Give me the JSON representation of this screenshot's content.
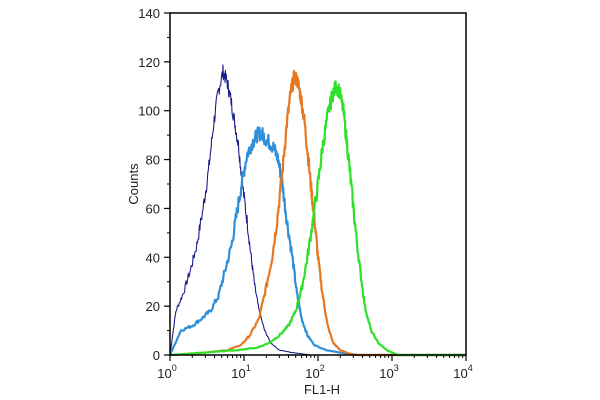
{
  "chart_data": {
    "type": "line",
    "xlabel": "FL1-H",
    "ylabel": "Counts",
    "x_scale": "log",
    "xlim": [
      1,
      10000
    ],
    "ylim": [
      0,
      140
    ],
    "x_ticks": [
      {
        "value": 1,
        "base": "10",
        "exp": "0"
      },
      {
        "value": 10,
        "base": "10",
        "exp": "1"
      },
      {
        "value": 100,
        "base": "10",
        "exp": "2"
      },
      {
        "value": 1000,
        "base": "10",
        "exp": "3"
      },
      {
        "value": 10000,
        "base": "10",
        "exp": "4"
      }
    ],
    "y_ticks": [
      "0",
      "20",
      "40",
      "60",
      "80",
      "100",
      "120",
      "140"
    ],
    "grid": false,
    "series": [
      {
        "color": "#1a1f8c",
        "points": [
          [
            1.0,
            0
          ],
          [
            1.2,
            18
          ],
          [
            1.5,
            25
          ],
          [
            1.9,
            35
          ],
          [
            2.3,
            45
          ],
          [
            2.8,
            60
          ],
          [
            3.3,
            75
          ],
          [
            3.9,
            95
          ],
          [
            4.5,
            108
          ],
          [
            5.2,
            116
          ],
          [
            5.9,
            112
          ],
          [
            6.6,
            105
          ],
          [
            7.5,
            95
          ],
          [
            8.5,
            85
          ],
          [
            9.5,
            70
          ],
          [
            11,
            55
          ],
          [
            12.5,
            40
          ],
          [
            14,
            28
          ],
          [
            16,
            18
          ],
          [
            19,
            10
          ],
          [
            23,
            5
          ],
          [
            30,
            2
          ],
          [
            45,
            1
          ],
          [
            80,
            0
          ],
          [
            200,
            0
          ],
          [
            10000,
            0
          ]
        ]
      },
      {
        "color": "#2f8fd8",
        "points": [
          [
            1.0,
            0
          ],
          [
            1.4,
            10
          ],
          [
            2.0,
            12
          ],
          [
            2.7,
            15
          ],
          [
            3.5,
            18
          ],
          [
            4.5,
            24
          ],
          [
            5.5,
            34
          ],
          [
            6.8,
            45
          ],
          [
            8.0,
            58
          ],
          [
            9.5,
            72
          ],
          [
            11,
            82
          ],
          [
            13,
            87
          ],
          [
            15,
            90
          ],
          [
            17,
            91
          ],
          [
            19,
            89
          ],
          [
            22,
            87
          ],
          [
            25,
            85
          ],
          [
            29,
            80
          ],
          [
            33,
            70
          ],
          [
            38,
            55
          ],
          [
            45,
            40
          ],
          [
            52,
            25
          ],
          [
            60,
            15
          ],
          [
            72,
            8
          ],
          [
            90,
            4
          ],
          [
            130,
            2
          ],
          [
            200,
            1
          ],
          [
            350,
            0
          ],
          [
            10000,
            0
          ]
        ]
      },
      {
        "color": "#e87722",
        "points": [
          [
            1.0,
            0
          ],
          [
            3,
            1
          ],
          [
            6,
            2
          ],
          [
            9,
            4
          ],
          [
            12,
            8
          ],
          [
            16,
            15
          ],
          [
            20,
            28
          ],
          [
            24,
            40
          ],
          [
            28,
            55
          ],
          [
            33,
            75
          ],
          [
            38,
            95
          ],
          [
            43,
            108
          ],
          [
            48,
            114
          ],
          [
            53,
            112
          ],
          [
            59,
            105
          ],
          [
            66,
            95
          ],
          [
            73,
            82
          ],
          [
            81,
            68
          ],
          [
            90,
            55
          ],
          [
            100,
            40
          ],
          [
            115,
            25
          ],
          [
            135,
            12
          ],
          [
            160,
            5
          ],
          [
            200,
            2
          ],
          [
            300,
            0
          ],
          [
            10000,
            0
          ]
        ]
      },
      {
        "color": "#2fe02a",
        "points": [
          [
            1.0,
            0
          ],
          [
            3,
            1
          ],
          [
            8,
            2
          ],
          [
            15,
            3
          ],
          [
            22,
            5
          ],
          [
            30,
            8
          ],
          [
            40,
            12
          ],
          [
            50,
            18
          ],
          [
            60,
            27
          ],
          [
            72,
            40
          ],
          [
            85,
            55
          ],
          [
            100,
            70
          ],
          [
            115,
            85
          ],
          [
            135,
            98
          ],
          [
            155,
            106
          ],
          [
            175,
            110
          ],
          [
            195,
            108
          ],
          [
            220,
            100
          ],
          [
            250,
            85
          ],
          [
            280,
            70
          ],
          [
            320,
            52
          ],
          [
            370,
            35
          ],
          [
            430,
            20
          ],
          [
            520,
            10
          ],
          [
            650,
            5
          ],
          [
            850,
            2
          ],
          [
            1200,
            0
          ],
          [
            10000,
            0
          ]
        ]
      }
    ]
  }
}
